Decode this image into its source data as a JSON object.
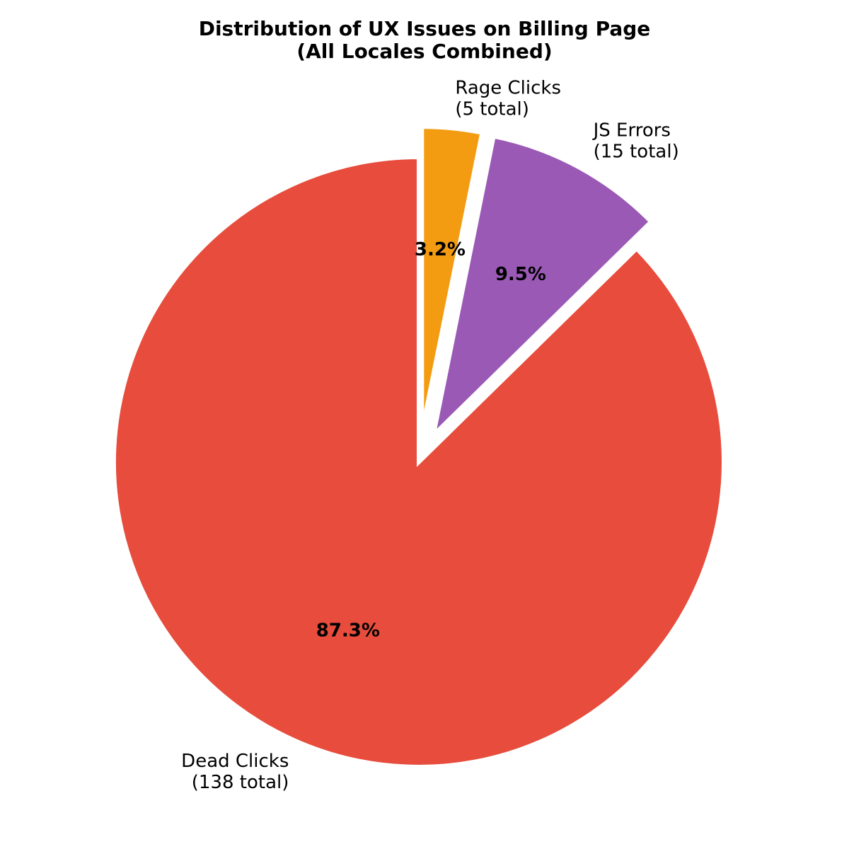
{
  "chart_data": {
    "type": "pie",
    "title": "Distribution of UX Issues on Billing Page",
    "subtitle": "(All Locales Combined)",
    "start_angle_deg": 90,
    "direction": "clockwise",
    "slices": [
      {
        "name": "Rage Clicks",
        "count_label": "(5 total)",
        "value": 5,
        "percent_label": "3.2%",
        "color": "#f39c12",
        "exploded": true
      },
      {
        "name": "JS Errors",
        "count_label": "(15 total)",
        "value": 15,
        "percent_label": "9.5%",
        "color": "#9b59b6",
        "exploded": true
      },
      {
        "name": "Dead Clicks",
        "count_label": "(138 total)",
        "value": 138,
        "percent_label": "87.3%",
        "color": "#e74c3c",
        "exploded": false
      }
    ],
    "wedge_edge_color": "#ffffff"
  }
}
